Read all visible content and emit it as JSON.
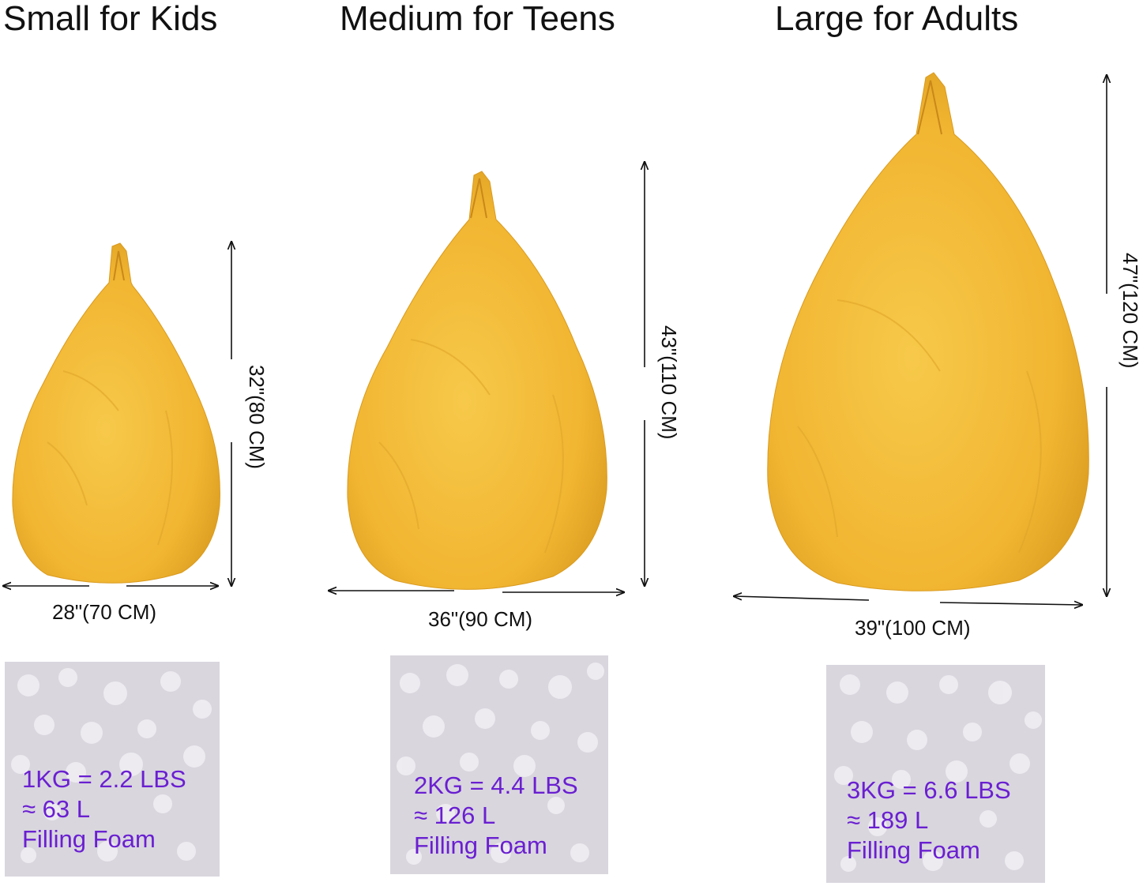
{
  "titles": {
    "small": "Small for Kids",
    "medium": "Medium for Teens",
    "large": "Large for Adults"
  },
  "dimensions": {
    "small": {
      "width": "28\"(70 CM)",
      "height": "32\"(80 CM)"
    },
    "medium": {
      "width": "36\"(90 CM)",
      "height": "43\"(110 CM)"
    },
    "large": {
      "width": "39\"(100 CM)",
      "height": "47\"(120 CM)"
    }
  },
  "filling": {
    "small": {
      "weight": "1KG = 2.2 LBS",
      "volume": "≈ 63 L",
      "label": "Filling Foam"
    },
    "medium": {
      "weight": "2KG = 4.4 LBS",
      "volume": "≈ 126 L",
      "label": "Filling Foam"
    },
    "large": {
      "weight": "3KG = 6.6 LBS",
      "volume": "≈ 189 L",
      "label": "Filling Foam"
    }
  },
  "colors": {
    "bag": "#f1b531",
    "bag_light": "#f7c94a",
    "bag_shadow": "#d99a1e",
    "foam_bg": "#d9d6de",
    "text_purple": "#6a1fd1"
  }
}
